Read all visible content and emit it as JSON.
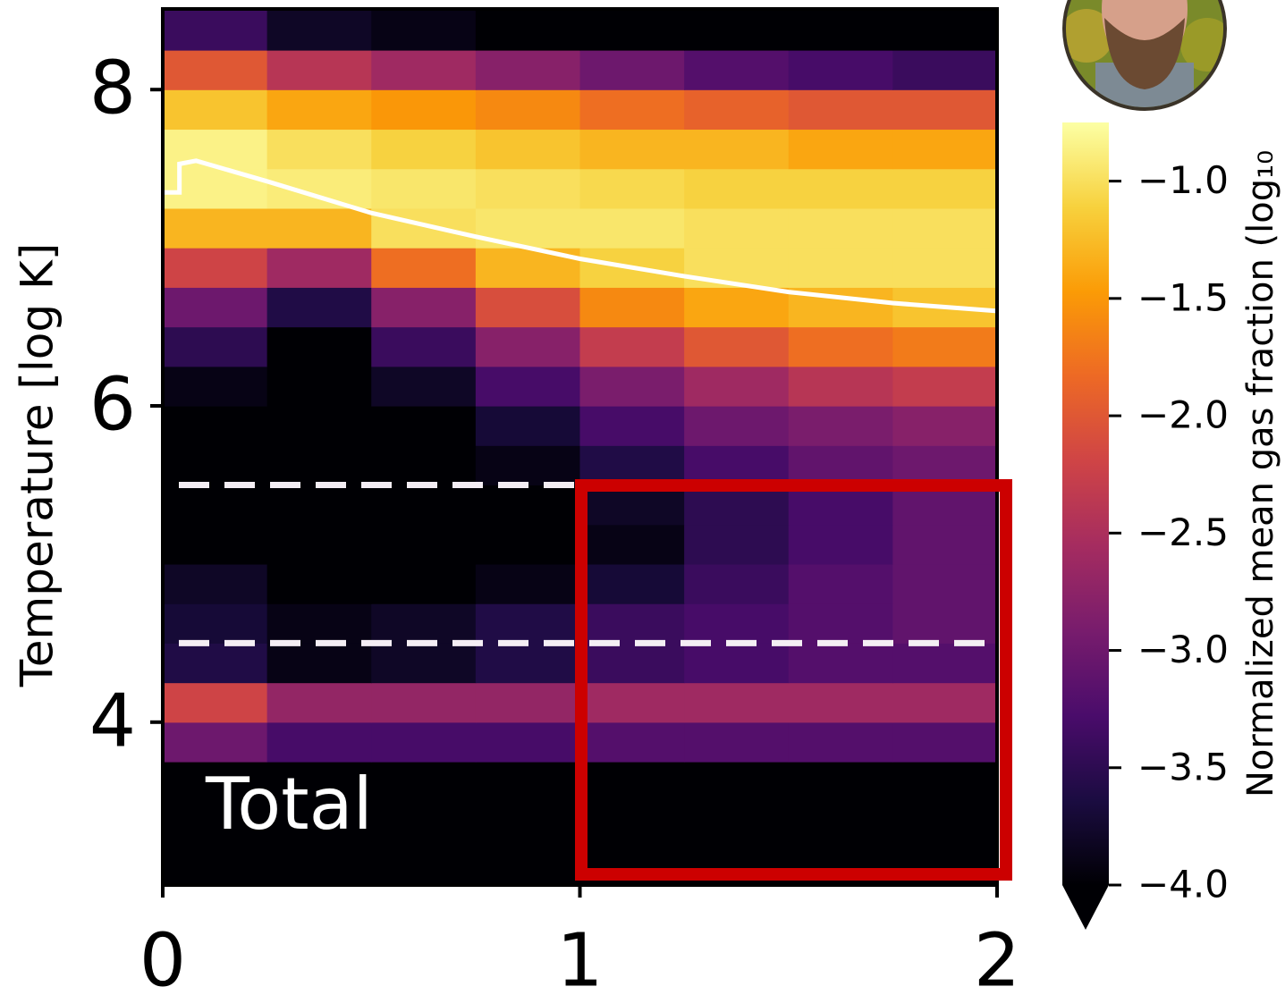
{
  "chart_data": {
    "type": "heatmap",
    "ylabel": "Temperature [log K]",
    "annotation": "Total",
    "xlim": [
      0,
      2
    ],
    "ylim": [
      2.97,
      8.51
    ],
    "xticks": [
      0,
      1,
      2
    ],
    "yticks": [
      4,
      6,
      8
    ],
    "xbins": [
      0,
      0.25,
      0.5,
      0.75,
      1,
      1.25,
      1.5,
      1.75,
      2
    ],
    "ybins": [
      3.0,
      3.25,
      3.5,
      3.75,
      4.0,
      4.25,
      4.5,
      4.75,
      5.0,
      5.25,
      5.5,
      5.75,
      6.0,
      6.25,
      6.5,
      6.75,
      7.0,
      7.25,
      7.5,
      7.75,
      8.0,
      8.25,
      8.5
    ],
    "z": [
      [
        -4,
        -4,
        -4,
        -4,
        -4,
        -4,
        -4,
        -4
      ],
      [
        -4,
        -4,
        -4,
        -4,
        -4,
        -4,
        -4,
        -4
      ],
      [
        -4,
        -4,
        -4,
        -4,
        -4,
        -4,
        -4,
        -4
      ],
      [
        -3.0,
        -3.3,
        -3.3,
        -3.3,
        -3.2,
        -3.2,
        -3.2,
        -3.2
      ],
      [
        -2.2,
        -2.7,
        -2.7,
        -2.7,
        -2.6,
        -2.6,
        -2.6,
        -2.6
      ],
      [
        -3.6,
        -3.9,
        -3.8,
        -3.6,
        -3.4,
        -3.3,
        -3.2,
        -3.2
      ],
      [
        -3.7,
        -3.9,
        -3.8,
        -3.6,
        -3.4,
        -3.3,
        -3.2,
        -3.1
      ],
      [
        -3.8,
        -4,
        -4,
        -3.9,
        -3.7,
        -3.4,
        -3.2,
        -3.1
      ],
      [
        -4,
        -4,
        -4,
        -4,
        -3.9,
        -3.5,
        -3.3,
        -3.1
      ],
      [
        -4,
        -4,
        -4,
        -4,
        -3.8,
        -3.5,
        -3.3,
        -3.1
      ],
      [
        -4,
        -4,
        -4,
        -3.9,
        -3.6,
        -3.3,
        -3.1,
        -3.0
      ],
      [
        -4,
        -4,
        -4,
        -3.7,
        -3.3,
        -3.0,
        -2.9,
        -2.8
      ],
      [
        -3.9,
        -4,
        -3.8,
        -3.3,
        -2.9,
        -2.6,
        -2.4,
        -2.3
      ],
      [
        -3.5,
        -4,
        -3.4,
        -2.8,
        -2.3,
        -2.0,
        -1.8,
        -1.7
      ],
      [
        -3.0,
        -3.6,
        -2.8,
        -2.1,
        -1.6,
        -1.4,
        -1.3,
        -1.2
      ],
      [
        -2.2,
        -2.6,
        -1.8,
        -1.3,
        -1.1,
        -1.0,
        -1.0,
        -1.0
      ],
      [
        -1.3,
        -1.3,
        -1.0,
        -0.95,
        -0.95,
        -1.0,
        -1.0,
        -1.0
      ],
      [
        -0.85,
        -0.9,
        -0.95,
        -1.0,
        -1.05,
        -1.1,
        -1.1,
        -1.1
      ],
      [
        -0.85,
        -1.0,
        -1.1,
        -1.2,
        -1.3,
        -1.3,
        -1.4,
        -1.4
      ],
      [
        -1.2,
        -1.4,
        -1.5,
        -1.6,
        -1.8,
        -1.9,
        -2.0,
        -2.0
      ],
      [
        -2.0,
        -2.4,
        -2.6,
        -2.8,
        -3.0,
        -3.2,
        -3.3,
        -3.4
      ],
      [
        -3.4,
        -3.8,
        -3.9,
        -4,
        -4,
        -4,
        -4,
        -4
      ]
    ],
    "colormap": "inferno",
    "colormap_colors": [
      "#000004",
      "#1b0c41",
      "#4a0c6b",
      "#781c6d",
      "#a52c60",
      "#cf4446",
      "#ed6925",
      "#fb9b06",
      "#f7d13d",
      "#fcffa4"
    ],
    "clim": [
      -4,
      -0.75
    ],
    "colorbar_extend": "min",
    "colorbar_label": "Normalized mean gas fraction (log₁₀",
    "cticks": [
      {
        "value": -1.0,
        "label": "−1.0"
      },
      {
        "value": -1.5,
        "label": "−1.5"
      },
      {
        "value": -2.0,
        "label": "−2.0"
      },
      {
        "value": -2.5,
        "label": "−2.5"
      },
      {
        "value": -3.0,
        "label": "−3.0"
      },
      {
        "value": -3.5,
        "label": "−3.5"
      },
      {
        "value": -4.0,
        "label": "−4.0"
      }
    ],
    "curve": {
      "color": "#ffffff",
      "x": [
        0,
        0.04,
        0.04,
        0.08,
        0.25,
        0.5,
        0.75,
        1,
        1.25,
        1.5,
        1.75,
        2
      ],
      "y": [
        7.35,
        7.35,
        7.53,
        7.55,
        7.42,
        7.22,
        7.07,
        6.93,
        6.82,
        6.72,
        6.65,
        6.6
      ]
    },
    "hlines": [
      5.5,
      4.5
    ]
  }
}
